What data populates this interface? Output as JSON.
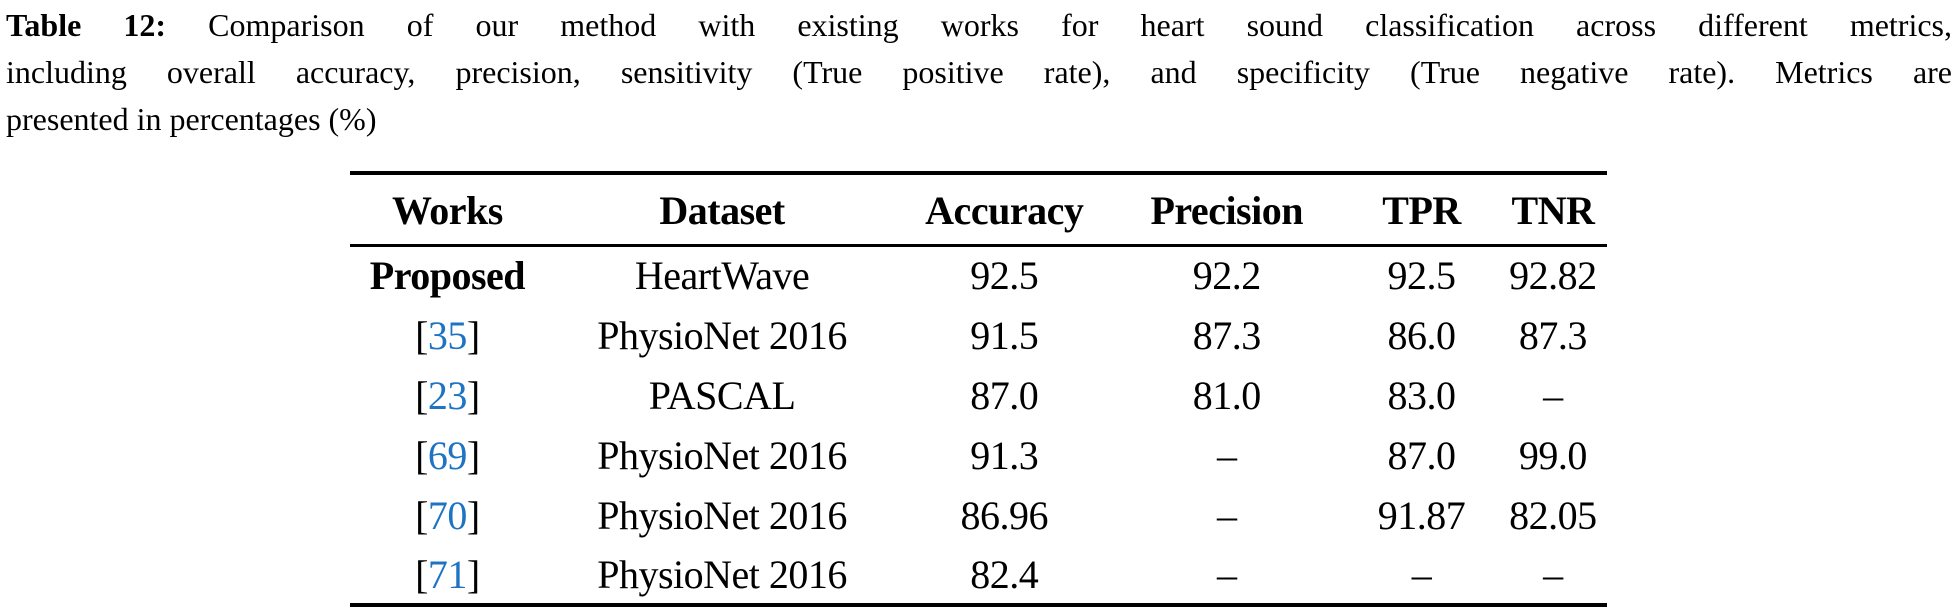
{
  "caption": {
    "label": "Table 12:",
    "line1_rest": " Comparison of our method with existing works for heart sound classification across different metrics,",
    "line2": "including overall accuracy, precision, sensitivity (True positive rate), and specificity (True negative rate). Metrics are",
    "line3": "presented in percentages (%)"
  },
  "table": {
    "columns": [
      "Works",
      "Dataset",
      "Accuracy",
      "Precision",
      "TPR",
      "TNR"
    ],
    "citation_brackets": [
      "[",
      "]"
    ],
    "missing_value": "–",
    "rows": [
      {
        "work": "Proposed",
        "citation": false,
        "dataset": "HeartWave",
        "accuracy": "92.5",
        "precision": "92.2",
        "tpr": "92.5",
        "tnr": "92.82"
      },
      {
        "work": "35",
        "citation": true,
        "dataset": "PhysioNet 2016",
        "accuracy": "91.5",
        "precision": "87.3",
        "tpr": "86.0",
        "tnr": "87.3"
      },
      {
        "work": "23",
        "citation": true,
        "dataset": "PASCAL",
        "accuracy": "87.0",
        "precision": "81.0",
        "tpr": "83.0",
        "tnr": "–"
      },
      {
        "work": "69",
        "citation": true,
        "dataset": "PhysioNet 2016",
        "accuracy": "91.3",
        "precision": "–",
        "tpr": "87.0",
        "tnr": "99.0"
      },
      {
        "work": "70",
        "citation": true,
        "dataset": "PhysioNet 2016",
        "accuracy": "86.96",
        "precision": "–",
        "tpr": "91.87",
        "tnr": "82.05"
      },
      {
        "work": "71",
        "citation": true,
        "dataset": "PhysioNet 2016",
        "accuracy": "82.4",
        "precision": "–",
        "tpr": "–",
        "tnr": "–"
      }
    ]
  },
  "colors": {
    "citation_blue": "#1e73c2",
    "text": "#000000",
    "background": "#ffffff"
  }
}
